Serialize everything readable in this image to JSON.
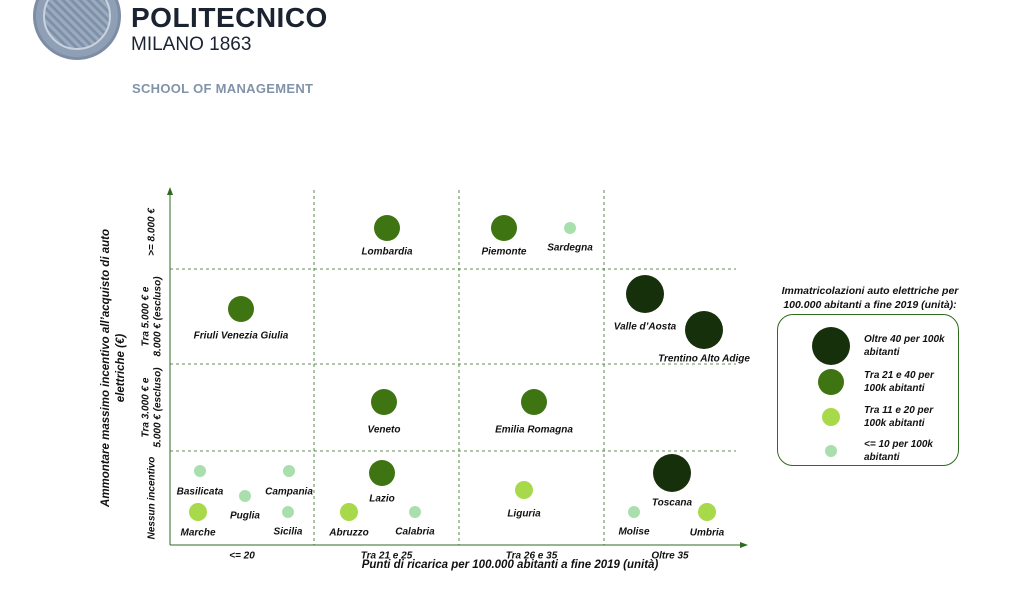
{
  "header": {
    "brand_name": "POLITECNICO",
    "brand_sub": "MILANO 1863",
    "school": "SCHOOL OF MANAGEMENT"
  },
  "colors": {
    "very_dark": "#17300c",
    "dark": "#3e7512",
    "light": "#a8d94a",
    "very_light": "#a9dfac",
    "axis": "#2f6b1f",
    "grid": "#2f6b1f"
  },
  "chart_data": {
    "type": "scatter",
    "xlabel": "Punti di ricarica per 100.000 abitanti a fine 2019 (unità)",
    "ylabel_lines": [
      "Ammontare massimo incentivo all’acquisto di auto",
      "elettriche (€)"
    ],
    "x_categories": [
      "<= 20",
      "Tra 21 e 25",
      "Tra 26 e 35",
      "Oltre 35"
    ],
    "y_categories": [
      [
        "Nessun incentivo"
      ],
      [
        "Tra 3.000 € e",
        "5.000 € (escluso)"
      ],
      [
        "Tra 5.000 € e",
        "8.000 € (escluso)"
      ],
      [
        ">= 8.000 €"
      ]
    ],
    "points": [
      {
        "name": "Lombardia",
        "x": "Tra 21 e 25",
        "y": ">= 8.000 €",
        "class": "dark"
      },
      {
        "name": "Piemonte",
        "x": "Tra 26 e 35",
        "y": ">= 8.000 €",
        "class": "dark"
      },
      {
        "name": "Sardegna",
        "x": "Tra 26 e 35",
        "y": ">= 8.000 €",
        "class": "very_light"
      },
      {
        "name": "Friuli Venezia Giulia",
        "x": "<= 20",
        "y": "Tra 5.000 € e 8.000 € (escluso)",
        "class": "dark"
      },
      {
        "name": "Valle d’Aosta",
        "x": "Oltre 35",
        "y": "Tra 5.000 € e 8.000 € (escluso)",
        "class": "very_dark"
      },
      {
        "name": "Trentino Alto Adige",
        "x": "Oltre 35",
        "y": "Tra 5.000 € e 8.000 € (escluso)",
        "class": "very_dark"
      },
      {
        "name": "Veneto",
        "x": "Tra 21 e 25",
        "y": "Tra 3.000 € e 5.000 € (escluso)",
        "class": "dark"
      },
      {
        "name": "Emilia Romagna",
        "x": "Tra 26 e 35",
        "y": "Tra 3.000 € e 5.000 € (escluso)",
        "class": "dark"
      },
      {
        "name": "Basilicata",
        "x": "<= 20",
        "y": "Nessun incentivo",
        "class": "very_light"
      },
      {
        "name": "Campania",
        "x": "<= 20",
        "y": "Nessun incentivo",
        "class": "very_light"
      },
      {
        "name": "Puglia",
        "x": "<= 20",
        "y": "Nessun incentivo",
        "class": "very_light"
      },
      {
        "name": "Marche",
        "x": "<= 20",
        "y": "Nessun incentivo",
        "class": "light"
      },
      {
        "name": "Sicilia",
        "x": "<= 20",
        "y": "Nessun incentivo",
        "class": "very_light"
      },
      {
        "name": "Lazio",
        "x": "Tra 21 e 25",
        "y": "Nessun incentivo",
        "class": "dark"
      },
      {
        "name": "Abruzzo",
        "x": "Tra 21 e 25",
        "y": "Nessun incentivo",
        "class": "light"
      },
      {
        "name": "Calabria",
        "x": "Tra 21 e 25",
        "y": "Nessun incentivo",
        "class": "very_light"
      },
      {
        "name": "Liguria",
        "x": "Tra 26 e 35",
        "y": "Nessun incentivo",
        "class": "light"
      },
      {
        "name": "Toscana",
        "x": "Oltre 35",
        "y": "Nessun incentivo",
        "class": "very_dark"
      },
      {
        "name": "Molise",
        "x": "Oltre 35",
        "y": "Nessun incentivo",
        "class": "very_light"
      },
      {
        "name": "Umbria",
        "x": "Oltre 35",
        "y": "Nessun incentivo",
        "class": "light"
      }
    ],
    "legend": {
      "title": "Immatricolazioni auto elettriche per 100.000 abitanti a fine 2019 (unità):",
      "placement": "right",
      "items": [
        {
          "class": "very_dark",
          "label": "Oltre 40 per 100k abitanti"
        },
        {
          "class": "dark",
          "label": "Tra 21 e 40 per 100k abitanti"
        },
        {
          "class": "light",
          "label": "Tra 11 e 20 per 100k abitanti"
        },
        {
          "class": "very_light",
          "label": "<= 10 per 100k abitanti"
        }
      ]
    }
  }
}
